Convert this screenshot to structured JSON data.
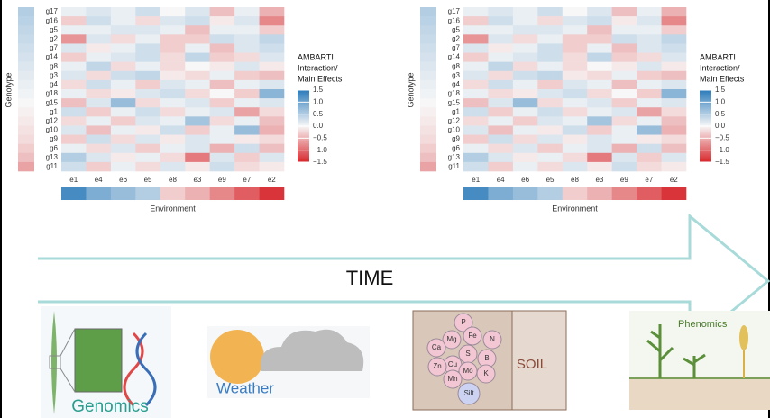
{
  "chart_data": [
    {
      "type": "heatmap",
      "x_label": "Environment",
      "y_label": "Genotype",
      "legend_title": [
        "AMBARTI",
        "Interaction/",
        "Main Effects"
      ],
      "categories": [
        "e1",
        "e4",
        "e6",
        "e5",
        "e8",
        "e3",
        "e9",
        "e7",
        "e2"
      ],
      "rows": [
        "g17",
        "g16",
        "g5",
        "g2",
        "g7",
        "g14",
        "g8",
        "g3",
        "g4",
        "g18",
        "g15",
        "g1",
        "g12",
        "g10",
        "g9",
        "g6",
        "g13",
        "g11"
      ],
      "values": [
        [
          0.1,
          0.2,
          0.1,
          0.3,
          0,
          0.2,
          -0.4,
          0.1,
          -0.5
        ],
        [
          -0.3,
          0.3,
          0.1,
          -0.2,
          0.2,
          0.3,
          -0.1,
          0.2,
          -0.8
        ],
        [
          0.1,
          0.1,
          0.2,
          0.2,
          0.1,
          -0.4,
          0.1,
          0.1,
          -0.3
        ],
        [
          -0.7,
          0.2,
          -0.2,
          0.1,
          -0.3,
          -0.3,
          0.3,
          0.2,
          0.4
        ],
        [
          0.2,
          -0.1,
          0.1,
          0.3,
          -0.3,
          0.1,
          -0.4,
          0.2,
          0.3
        ],
        [
          -0.3,
          0.1,
          0.2,
          0.3,
          -0.2,
          0.4,
          -0.3,
          -0.2,
          0.2
        ],
        [
          0.1,
          0.4,
          -0.2,
          0.1,
          -0.2,
          0,
          -0.1,
          0.2,
          -0.1
        ],
        [
          0.2,
          -0.2,
          0.3,
          0.4,
          -0.1,
          -0.2,
          0.1,
          -0.3,
          -0.4
        ],
        [
          -0.2,
          0.3,
          0.1,
          -0.3,
          0.2,
          0.1,
          -0.4,
          0.1,
          0.2
        ],
        [
          0.1,
          -0.2,
          -0.1,
          0.2,
          0.3,
          -0.2,
          0,
          -0.3,
          0.8
        ],
        [
          -0.4,
          0.2,
          0.7,
          -0.2,
          0.1,
          0.2,
          -0.3,
          0.1,
          0.2
        ],
        [
          0.3,
          -0.3,
          0.1,
          0.3,
          -0.2,
          0.1,
          0.2,
          -0.6,
          -0.2
        ],
        [
          -0.2,
          0.1,
          -0.3,
          0.2,
          0.1,
          0.6,
          -0.2,
          0.1,
          -0.4
        ],
        [
          0.2,
          -0.4,
          0.1,
          -0.1,
          0.3,
          -0.3,
          0.1,
          0.7,
          -0.5
        ],
        [
          -0.3,
          0.3,
          -0.2,
          0.2,
          -0.1,
          0.2,
          0.1,
          -0.1,
          -0.2
        ],
        [
          0.1,
          -0.2,
          0.2,
          -0.3,
          0.1,
          0.2,
          -0.5,
          0.3,
          -0.4
        ],
        [
          0.5,
          0.2,
          -0.1,
          0.1,
          -0.2,
          -0.9,
          0.2,
          -0.3,
          0.2
        ],
        [
          0.3,
          -0.3,
          0.1,
          -0.2,
          0.2,
          -0.1,
          0.3,
          -0.2,
          -0.1
        ]
      ],
      "genotype_effects": [
        0.5,
        0.45,
        0.4,
        0.35,
        0.3,
        0.25,
        0.2,
        0.15,
        0.1,
        0.05,
        0,
        -0.05,
        -0.1,
        -0.15,
        -0.2,
        -0.3,
        -0.4,
        -0.6
      ],
      "environment_effects": [
        1.3,
        0.9,
        0.7,
        0.5,
        -0.3,
        -0.5,
        -0.8,
        -1.1,
        -1.4
      ],
      "zlim": [
        -1.5,
        1.5
      ],
      "zticks": [
        1.5,
        {
          "value": 1,
          "label": "1.0"
        },
        0.5,
        {
          "value": 0,
          "label": "0.0"
        },
        {
          "value": -0.5,
          "label": "−0.5"
        },
        {
          "value": -1,
          "label": "−1.0"
        },
        {
          "value": -1.5,
          "label": "−1.5"
        }
      ],
      "colors": [
        "#d7262b",
        "#f7f7f7",
        "#2b7bba"
      ]
    },
    {
      "type": "heatmap",
      "x_label": "Environment",
      "y_label": "Genotype",
      "legend_title": [
        "AMBARTI",
        "Interaction/",
        "Main Effects"
      ],
      "categories": [
        "e1",
        "e4",
        "e6",
        "e5",
        "e8",
        "e3",
        "e9",
        "e7",
        "e2"
      ],
      "rows": [
        "g17",
        "g16",
        "g5",
        "g2",
        "g7",
        "g14",
        "g8",
        "g3",
        "g4",
        "g18",
        "g15",
        "g1",
        "g12",
        "g10",
        "g9",
        "g6",
        "g13",
        "g11"
      ],
      "values": [
        [
          0.1,
          0.2,
          0.1,
          0.3,
          0,
          0.2,
          -0.4,
          0.1,
          -0.5
        ],
        [
          -0.3,
          0.3,
          0.1,
          -0.2,
          0.2,
          0.3,
          -0.1,
          0.2,
          -0.8
        ],
        [
          0.1,
          0.1,
          0.2,
          0.2,
          0.1,
          -0.4,
          0.1,
          0.1,
          -0.3
        ],
        [
          -0.7,
          0.2,
          -0.2,
          0.1,
          -0.3,
          -0.3,
          0.3,
          0.2,
          0.4
        ],
        [
          0.2,
          -0.1,
          0.1,
          0.3,
          -0.3,
          0.1,
          -0.4,
          0.2,
          0.3
        ],
        [
          -0.3,
          0.1,
          0.2,
          0.3,
          -0.2,
          0.4,
          -0.3,
          -0.2,
          0.2
        ],
        [
          0.1,
          0.4,
          -0.2,
          0.1,
          -0.2,
          0,
          -0.1,
          0.2,
          -0.1
        ],
        [
          0.2,
          -0.2,
          0.3,
          0.4,
          -0.1,
          -0.2,
          0.1,
          -0.3,
          -0.4
        ],
        [
          -0.2,
          0.3,
          0.1,
          -0.3,
          0.2,
          0.1,
          -0.4,
          0.1,
          0.2
        ],
        [
          0.1,
          -0.2,
          -0.1,
          0.2,
          0.3,
          -0.2,
          0,
          -0.3,
          0.8
        ],
        [
          -0.4,
          0.2,
          0.7,
          -0.2,
          0.1,
          0.2,
          -0.3,
          0.1,
          0.2
        ],
        [
          0.3,
          -0.3,
          0.1,
          0.3,
          -0.2,
          0.1,
          0.2,
          -0.6,
          -0.2
        ],
        [
          -0.2,
          0.1,
          -0.3,
          0.2,
          0.1,
          0.6,
          -0.2,
          0.1,
          -0.4
        ],
        [
          0.2,
          -0.4,
          0.1,
          -0.1,
          0.3,
          -0.3,
          0.1,
          0.7,
          -0.5
        ],
        [
          -0.3,
          0.3,
          -0.2,
          0.2,
          -0.1,
          0.2,
          0.1,
          -0.1,
          -0.2
        ],
        [
          0.1,
          -0.2,
          0.2,
          -0.3,
          0.1,
          0.2,
          -0.5,
          0.3,
          -0.4
        ],
        [
          0.5,
          0.2,
          -0.1,
          0.1,
          -0.2,
          -0.9,
          0.2,
          -0.3,
          0.2
        ],
        [
          0.3,
          -0.3,
          0.1,
          -0.2,
          0.2,
          -0.1,
          0.3,
          -0.2,
          -0.1
        ]
      ],
      "genotype_effects": [
        0.5,
        0.45,
        0.4,
        0.35,
        0.3,
        0.25,
        0.2,
        0.15,
        0.1,
        0.05,
        0,
        -0.05,
        -0.1,
        -0.15,
        -0.2,
        -0.3,
        -0.4,
        -0.6
      ],
      "environment_effects": [
        1.3,
        0.9,
        0.7,
        0.5,
        -0.3,
        -0.5,
        -0.8,
        -1.1,
        -1.4
      ],
      "zlim": [
        -1.5,
        1.5
      ],
      "zticks": [
        1.5,
        {
          "value": 1,
          "label": "1.0"
        },
        0.5,
        {
          "value": 0,
          "label": "0.0"
        },
        {
          "value": -0.5,
          "label": "−0.5"
        },
        {
          "value": -1,
          "label": "−1.0"
        },
        {
          "value": -1.5,
          "label": "−1.5"
        }
      ],
      "colors": [
        "#d7262b",
        "#f7f7f7",
        "#2b7bba"
      ]
    }
  ],
  "diagram": {
    "time": "TIME",
    "genomics": "Genomics",
    "weather": "Weather",
    "soil": "SOIL",
    "phenomics": "Phenomics",
    "nutrients": [
      "P",
      "Mg",
      "Fe",
      "N",
      "Ca",
      "S",
      "B",
      "Cu",
      "Zn",
      "Mo",
      "K",
      "Mn",
      "Silt"
    ]
  }
}
